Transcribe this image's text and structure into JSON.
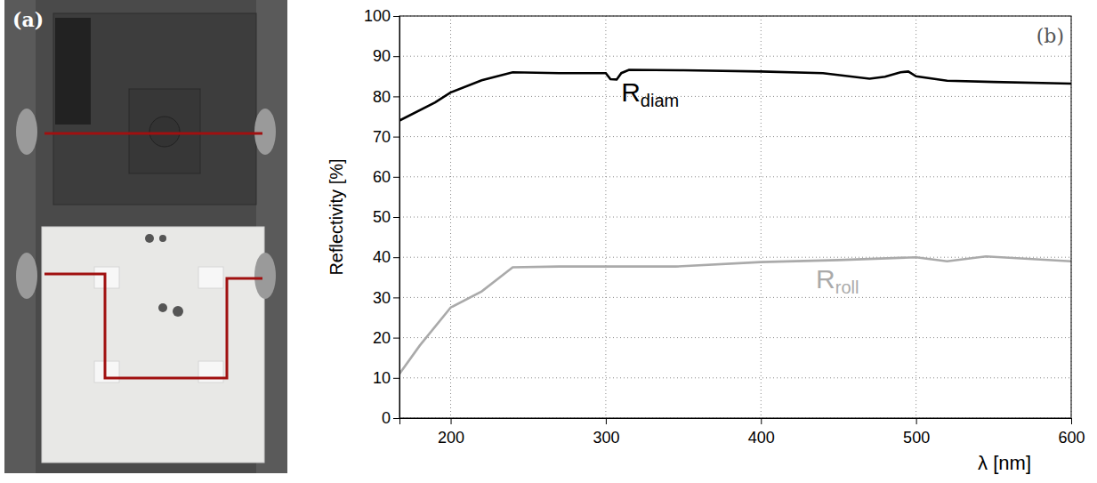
{
  "photo_panel": {
    "label": "(a)"
  },
  "chart_data": {
    "type": "line",
    "panel_label": "(b)",
    "x_label": "λ [nm]",
    "y_label": "Reflectivity [%]",
    "xlim": [
      167,
      600
    ],
    "ylim": [
      0,
      100
    ],
    "xticks": [
      200,
      300,
      400,
      500,
      600
    ],
    "yticks": [
      0,
      10,
      20,
      30,
      40,
      50,
      60,
      70,
      80,
      90,
      100
    ],
    "grid": true,
    "series": [
      {
        "name": "Rdiam",
        "color": "#000000",
        "x": [
          167,
          190,
          200,
          220,
          240,
          270,
          300,
          303,
          307,
          310,
          315,
          350,
          400,
          440,
          470,
          480,
          490,
          495,
          500,
          520,
          550,
          600
        ],
        "values": [
          74,
          78.5,
          81,
          84,
          86,
          85.8,
          85.8,
          84.3,
          84.2,
          85.8,
          86.6,
          86.5,
          86.2,
          85.8,
          84.4,
          84.9,
          86,
          86.2,
          85,
          83.9,
          83.6,
          83.2
        ]
      },
      {
        "name": "Rroll",
        "color": "#aaaaaa",
        "x": [
          167,
          180,
          200,
          220,
          240,
          270,
          345,
          400,
          450,
          500,
          520,
          545,
          600
        ],
        "values": [
          11,
          18,
          27.5,
          31.5,
          37.5,
          37.7,
          37.7,
          38.8,
          39.3,
          40,
          39,
          40.2,
          39
        ]
      }
    ]
  }
}
